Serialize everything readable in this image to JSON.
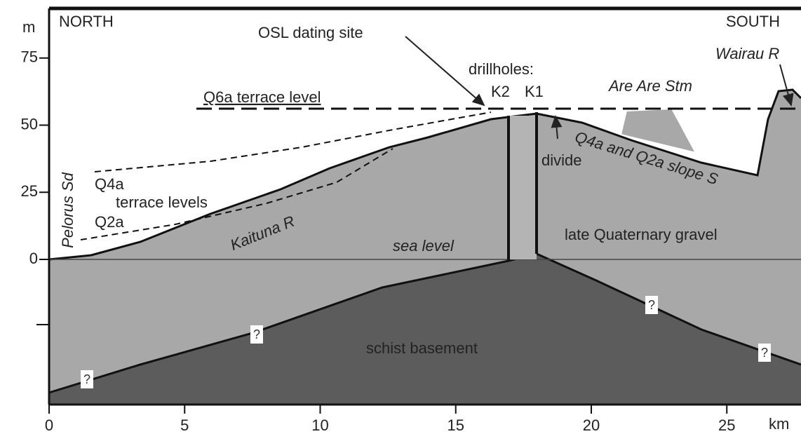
{
  "axes": {
    "y_unit": "m",
    "x_unit": "km",
    "xticks": [
      0,
      5,
      10,
      15,
      20,
      25
    ],
    "yticks": [
      75,
      50,
      25,
      0
    ]
  },
  "labels": {
    "north": "NORTH",
    "south": "SOUTH",
    "osl": "OSL dating site",
    "drillholes": "drillholes:",
    "k2": "K2",
    "k1": "K1",
    "terrace": "Q6a terrace level",
    "arearea": "Are Are Stm",
    "wairau": "Wairau R",
    "pelorus": "Pelorus Sd",
    "q4a": "Q4a",
    "terrace_levels": "terrace levels",
    "q2a": "Q2a",
    "kaituna": "Kaituna R",
    "divide": "divide",
    "slope": "Q4a and Q2a slope S",
    "gravel": "late Quaternary gravel",
    "sea_level": "sea level",
    "basement": "schist basement"
  },
  "unknown_marks": [
    "?",
    "?",
    "?",
    "?"
  ]
}
